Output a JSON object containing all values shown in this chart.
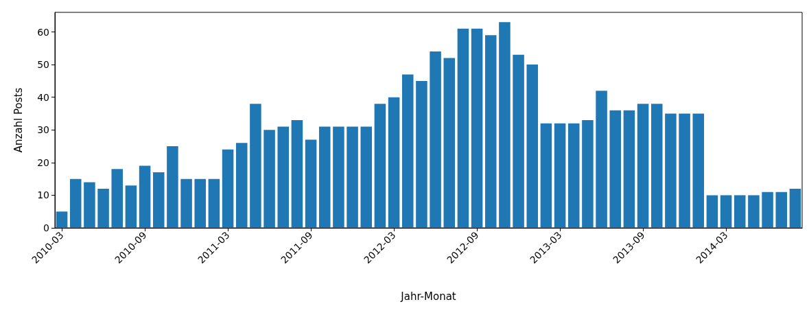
{
  "chart_data": {
    "type": "bar",
    "xlabel": "Jahr-Monat",
    "ylabel": "Anzahl Posts",
    "categories": [
      "2010-03",
      null,
      null,
      null,
      null,
      null,
      "2010-09",
      null,
      null,
      null,
      null,
      null,
      "2011-03",
      null,
      null,
      null,
      null,
      null,
      "2011-09",
      null,
      null,
      null,
      null,
      null,
      "2012-03",
      null,
      null,
      null,
      null,
      null,
      "2012-09",
      null,
      null,
      null,
      null,
      null,
      "2013-03",
      null,
      null,
      null,
      null,
      null,
      "2013-09",
      null,
      null,
      null,
      null,
      null,
      "2014-03",
      null,
      null,
      null,
      null,
      null
    ],
    "values": [
      5,
      15,
      14,
      12,
      18,
      13,
      19,
      17,
      25,
      15,
      15,
      15,
      24,
      26,
      38,
      30,
      31,
      33,
      27,
      31,
      31,
      31,
      31,
      38,
      40,
      47,
      45,
      54,
      52,
      61,
      61,
      59,
      63,
      53,
      50,
      32,
      32,
      32,
      33,
      42,
      36,
      36,
      38,
      38,
      35,
      35,
      35,
      10,
      10,
      10,
      10,
      11,
      11,
      12
    ],
    "color": "#1f77b4",
    "ylim": [
      0,
      66
    ],
    "yticks": [
      0,
      10,
      20,
      30,
      40,
      50,
      60
    ],
    "grid": false
  }
}
